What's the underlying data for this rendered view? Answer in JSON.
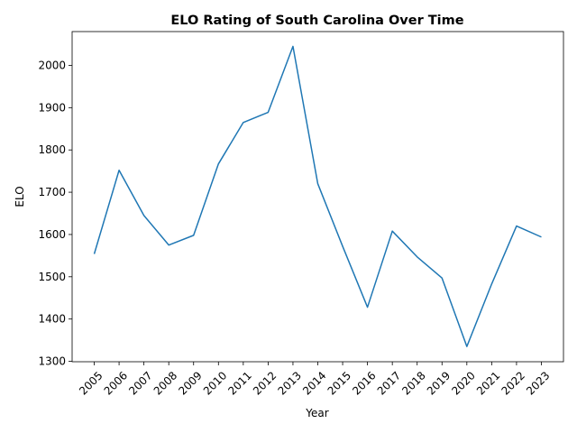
{
  "chart_data": {
    "type": "line",
    "title": "ELO Rating of South Carolina Over Time",
    "xlabel": "Year",
    "ylabel": "ELO",
    "x": [
      "2005",
      "2006",
      "2007",
      "2008",
      "2009",
      "2010",
      "2011",
      "2012",
      "2013",
      "2014",
      "2015",
      "2016",
      "2017",
      "2018",
      "2019",
      "2020",
      "2021",
      "2022",
      "2023"
    ],
    "series": [
      {
        "color": "#1f77b4",
        "values": [
          1554,
          1752,
          1645,
          1575,
          1598,
          1767,
          1865,
          1889,
          2045,
          1720,
          1572,
          1428,
          1608,
          1547,
          1497,
          1335,
          1483,
          1620,
          1594
        ]
      }
    ],
    "yticks": [
      1300,
      1400,
      1500,
      1600,
      1700,
      1800,
      1900,
      2000
    ],
    "ylim": [
      1299,
      2080
    ],
    "grid": false,
    "legend": "none"
  }
}
